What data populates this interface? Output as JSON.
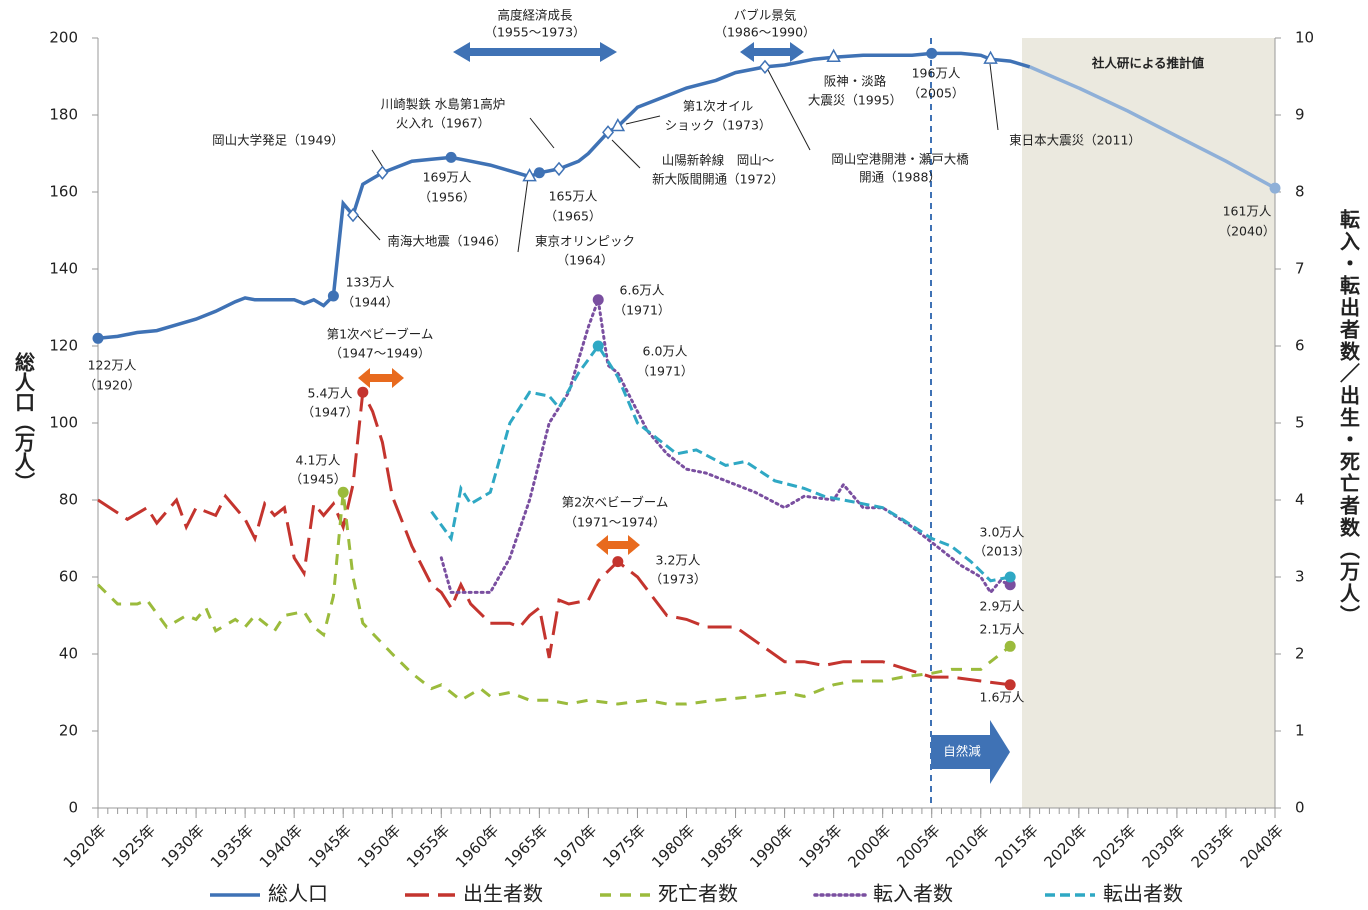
{
  "chart_data": {
    "type": "line",
    "y_label": "総人口（万人）",
    "y2_label": "転入・転出者数／出生・死亡者数（万人）",
    "xlim": [
      1920,
      2040
    ],
    "xticks": [
      {
        "value": 1920,
        "label": "1920年"
      },
      {
        "value": 1925,
        "label": "1925年"
      },
      {
        "value": 1930,
        "label": "1930年"
      },
      {
        "value": 1935,
        "label": "1935年"
      },
      {
        "value": 1940,
        "label": "1940年"
      },
      {
        "value": 1945,
        "label": "1945年"
      },
      {
        "value": 1950,
        "label": "1950年"
      },
      {
        "value": 1955,
        "label": "1955年"
      },
      {
        "value": 1960,
        "label": "1960年"
      },
      {
        "value": 1965,
        "label": "1965年"
      },
      {
        "value": 1970,
        "label": "1970年"
      },
      {
        "value": 1975,
        "label": "1975年"
      },
      {
        "value": 1980,
        "label": "1980年"
      },
      {
        "value": 1985,
        "label": "1985年"
      },
      {
        "value": 1990,
        "label": "1990年"
      },
      {
        "value": 1995,
        "label": "1995年"
      },
      {
        "value": 2000,
        "label": "2000年"
      },
      {
        "value": 2005,
        "label": "2005年"
      },
      {
        "value": 2010,
        "label": "2010年"
      },
      {
        "value": 2015,
        "label": "2015年"
      },
      {
        "value": 2020,
        "label": "2020年"
      },
      {
        "value": 2025,
        "label": "2025年"
      },
      {
        "value": 2030,
        "label": "2030年"
      },
      {
        "value": 2035,
        "label": "2035年"
      },
      {
        "value": 2040,
        "label": "2040年"
      }
    ],
    "ylim": [
      0,
      200
    ],
    "yticks": [
      0,
      20,
      40,
      60,
      80,
      100,
      120,
      140,
      160,
      180,
      200
    ],
    "y2lim": [
      0,
      10
    ],
    "y2ticks": [
      0,
      1,
      2,
      3,
      4,
      5,
      6,
      7,
      8,
      9,
      10
    ],
    "grid": false,
    "series": [
      {
        "name": "総人口",
        "color": "#3f72b5",
        "projection_color": "#8fb0d8",
        "dash": "solid",
        "x": [
          1920,
          1922,
          1924,
          1926,
          1928,
          1930,
          1932,
          1934,
          1935,
          1936,
          1938,
          1940,
          1941,
          1942,
          1943,
          1944,
          1945,
          1946,
          1947,
          1948,
          1949,
          1950,
          1952,
          1954,
          1956,
          1958,
          1960,
          1962,
          1964,
          1965,
          1967,
          1969,
          1970,
          1972,
          1973,
          1975,
          1978,
          1980,
          1983,
          1985,
          1988,
          1990,
          1993,
          1995,
          1998,
          2000,
          2003,
          2005,
          2008,
          2010,
          2011,
          2013,
          2015,
          2020,
          2025,
          2030,
          2035,
          2040
        ],
        "values": [
          122,
          122.5,
          123.5,
          124,
          125.5,
          127,
          129,
          131.5,
          132.5,
          132,
          132,
          132,
          131,
          132,
          130.5,
          133,
          157,
          154,
          162,
          163.5,
          165,
          166,
          168,
          168.5,
          169,
          168,
          167,
          165.5,
          164,
          165,
          166,
          168,
          170,
          175.5,
          177,
          182,
          185,
          187,
          189,
          191,
          192.5,
          193,
          194.5,
          195,
          195.5,
          195.5,
          195.5,
          196,
          196,
          195.5,
          194.5,
          194,
          192.5,
          187,
          181,
          174.5,
          168,
          161
        ]
      },
      {
        "name": "出生者数",
        "color": "#c4342e",
        "dash": "long-dash",
        "axis": "y2",
        "x": [
          1920,
          1923,
          1925,
          1926,
          1928,
          1929,
          1930,
          1932,
          1933,
          1935,
          1936,
          1937,
          1938,
          1939,
          1940,
          1941,
          1942,
          1943,
          1944,
          1945,
          1946,
          1947,
          1948,
          1949,
          1950,
          1952,
          1954,
          1955,
          1956,
          1957,
          1958,
          1960,
          1962,
          1963,
          1964,
          1965,
          1966,
          1967,
          1968,
          1970,
          1971,
          1973,
          1974,
          1975,
          1978,
          1980,
          1982,
          1985,
          1990,
          1992,
          1994,
          1996,
          2000,
          2005,
          2007,
          2010,
          2013
        ],
        "values": [
          4.0,
          3.75,
          3.9,
          3.7,
          4.0,
          3.65,
          3.9,
          3.8,
          4.05,
          3.75,
          3.5,
          3.95,
          3.8,
          3.9,
          3.25,
          3.05,
          3.95,
          3.8,
          3.95,
          3.65,
          4.2,
          5.4,
          5.15,
          4.75,
          4.05,
          3.4,
          2.9,
          2.8,
          2.6,
          2.9,
          2.65,
          2.4,
          2.4,
          2.35,
          2.5,
          2.6,
          1.95,
          2.7,
          2.65,
          2.7,
          2.95,
          3.2,
          3.1,
          3.0,
          2.5,
          2.45,
          2.35,
          2.35,
          1.9,
          1.9,
          1.85,
          1.9,
          1.9,
          1.7,
          1.7,
          1.65,
          1.6
        ]
      },
      {
        "name": "死亡者数",
        "color": "#9bbb3c",
        "dash": "dash",
        "axis": "y2",
        "x": [
          1920,
          1922,
          1924,
          1925,
          1927,
          1929,
          1930,
          1931,
          1932,
          1934,
          1935,
          1936,
          1938,
          1939,
          1941,
          1942,
          1943,
          1944,
          1945,
          1946,
          1947,
          1950,
          1952,
          1954,
          1955,
          1957,
          1959,
          1960,
          1962,
          1964,
          1966,
          1968,
          1970,
          1973,
          1976,
          1978,
          1980,
          1983,
          1987,
          1990,
          1992,
          1995,
          1997,
          2000,
          2002,
          2005,
          2007,
          2010,
          2012,
          2013
        ],
        "values": [
          2.9,
          2.65,
          2.65,
          2.7,
          2.35,
          2.5,
          2.45,
          2.6,
          2.3,
          2.45,
          2.35,
          2.5,
          2.3,
          2.5,
          2.55,
          2.35,
          2.25,
          2.75,
          4.1,
          3.0,
          2.4,
          2.0,
          1.75,
          1.55,
          1.6,
          1.4,
          1.55,
          1.45,
          1.5,
          1.4,
          1.4,
          1.35,
          1.4,
          1.35,
          1.4,
          1.35,
          1.35,
          1.4,
          1.45,
          1.5,
          1.45,
          1.6,
          1.65,
          1.65,
          1.7,
          1.75,
          1.8,
          1.8,
          2.0,
          2.1
        ]
      },
      {
        "name": "転入者数",
        "color": "#7a4fa0",
        "dash": "dot",
        "axis": "y2",
        "x": [
          1955,
          1956,
          1958,
          1960,
          1962,
          1964,
          1966,
          1968,
          1970,
          1971,
          1972,
          1973,
          1974,
          1976,
          1978,
          1980,
          1982,
          1985,
          1987,
          1990,
          1992,
          1995,
          1996,
          1998,
          2000,
          2003,
          2005,
          2008,
          2010,
          2011,
          2012,
          2013
        ],
        "values": [
          3.25,
          2.8,
          2.8,
          2.8,
          3.25,
          4.0,
          5.0,
          5.4,
          6.25,
          6.6,
          5.75,
          5.65,
          5.4,
          4.9,
          4.6,
          4.4,
          4.35,
          4.2,
          4.1,
          3.9,
          4.05,
          4.0,
          4.2,
          3.9,
          3.9,
          3.65,
          3.45,
          3.15,
          3.0,
          2.8,
          2.95,
          2.9
        ]
      },
      {
        "name": "転出者数",
        "color": "#2fa8c4",
        "dash": "medium-dash",
        "axis": "y2",
        "x": [
          1954,
          1956,
          1957,
          1958,
          1960,
          1962,
          1964,
          1966,
          1967,
          1969,
          1971,
          1973,
          1975,
          1977,
          1979,
          1981,
          1984,
          1986,
          1989,
          1992,
          1994,
          1996,
          1998,
          2000,
          2002,
          2005,
          2007,
          2009,
          2011,
          2013
        ],
        "values": [
          3.85,
          3.5,
          4.15,
          3.95,
          4.1,
          5.0,
          5.4,
          5.35,
          5.2,
          5.65,
          6.0,
          5.6,
          5.0,
          4.8,
          4.6,
          4.65,
          4.45,
          4.5,
          4.25,
          4.15,
          4.05,
          4.0,
          3.95,
          3.9,
          3.75,
          3.5,
          3.4,
          3.2,
          2.95,
          3.0
        ]
      }
    ],
    "legend": "bottom",
    "annotations": [
      "高度経済成長",
      "（1955〜1973）",
      "バブル景気",
      "（1986〜1990）",
      "岡山大学発足（1949）",
      "川崎製鉄 水島第1高炉",
      "火入れ（1967）",
      "南海大地震（1946）",
      "東京オリンピック",
      "（1964）",
      "第1次オイル",
      "ショック（1973）",
      "山陽新幹線　岡山〜",
      "新大阪間開通（1972）",
      "阪神・淡路",
      "大震災（1995）",
      "岡山空港開港・瀬戸大橋",
      "開通（1988）",
      "東日本大震災（2011）",
      "社人研による推計値",
      "196万人",
      "（2005）",
      "169万人",
      "（1956）",
      "165万人",
      "（1965）",
      "133万人",
      "（1944）",
      "122万人",
      "（1920）",
      "161万人",
      "（2040）",
      "5.4万人",
      "（1947）",
      "4.1万人",
      "（1945）",
      "6.6万人",
      "（1971）",
      "6.0万人",
      "（1971）",
      "3.2万人",
      "（1973）",
      "3.0万人",
      "（2013）",
      "2.9万人",
      "2.1万人",
      "1.6万人",
      "第1次ベビーブーム",
      "（1947〜1949）",
      "第2次ベビーブーム",
      "（1971〜1974）",
      "自然減"
    ]
  }
}
